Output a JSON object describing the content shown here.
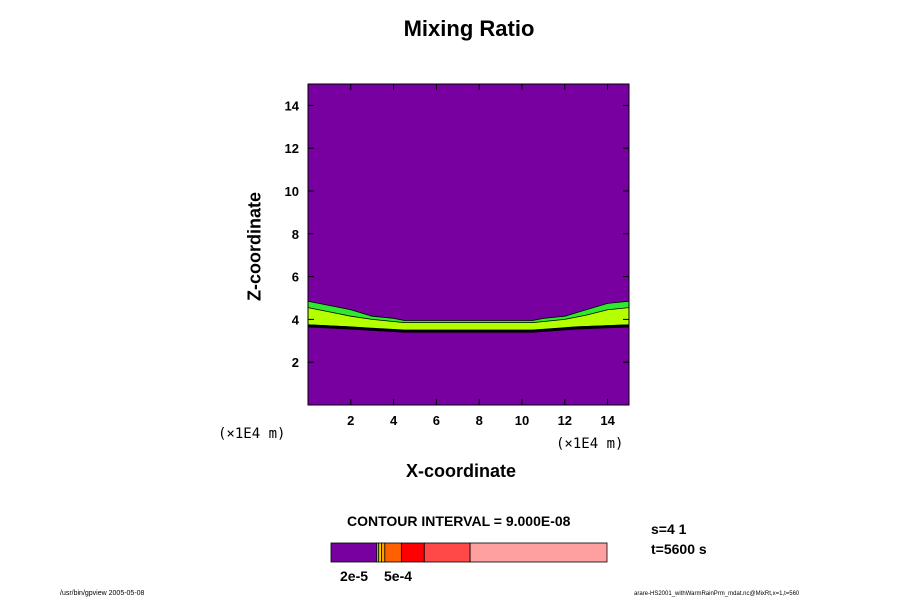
{
  "chart_data": {
    "type": "heatmap",
    "title": "Mixing Ratio",
    "xlabel": "X-coordinate",
    "ylabel": "Z-coordinate",
    "x_unit": "(×1E4 m)",
    "y_unit": "(×1E4 m)",
    "xlim": [
      0,
      15
    ],
    "ylim": [
      0,
      15
    ],
    "xticks": [
      2,
      4,
      6,
      8,
      10,
      12,
      14
    ],
    "yticks": [
      2,
      4,
      6,
      8,
      10,
      12,
      14
    ],
    "background_color": "#7800a0",
    "bands": [
      {
        "color": "#30e830",
        "top": [
          [
            0,
            4.85
          ],
          [
            1,
            4.65
          ],
          [
            2,
            4.45
          ],
          [
            3,
            4.15
          ],
          [
            4,
            4.05
          ],
          [
            4.5,
            3.95
          ],
          [
            10.5,
            3.95
          ],
          [
            11,
            4.05
          ],
          [
            12,
            4.15
          ],
          [
            13,
            4.45
          ],
          [
            14,
            4.75
          ],
          [
            15,
            4.85
          ]
        ],
        "bottom": [
          [
            0,
            3.7
          ],
          [
            15,
            3.7
          ]
        ]
      },
      {
        "color": "#b4ff00",
        "top": [
          [
            0,
            4.55
          ],
          [
            1,
            4.35
          ],
          [
            2,
            4.15
          ],
          [
            3,
            4.0
          ],
          [
            4.5,
            3.85
          ],
          [
            10.5,
            3.85
          ],
          [
            12,
            4.0
          ],
          [
            13,
            4.2
          ],
          [
            14,
            4.45
          ],
          [
            15,
            4.55
          ]
        ],
        "bottom": [
          [
            0,
            3.75
          ],
          [
            2,
            3.65
          ],
          [
            4.5,
            3.45
          ],
          [
            10.5,
            3.45
          ],
          [
            12.5,
            3.65
          ],
          [
            15,
            3.75
          ]
        ]
      }
    ],
    "contour_line_z": [
      [
        0,
        3.7
      ],
      [
        2,
        3.6
      ],
      [
        4.5,
        3.45
      ],
      [
        10.5,
        3.45
      ],
      [
        12.5,
        3.6
      ],
      [
        15,
        3.7
      ]
    ],
    "colorbar": {
      "colors": [
        "#7800a0",
        "#b4ff00",
        "#ffd000",
        "#ffa000",
        "#ff6000",
        "#ff0000",
        "#ff4848",
        "#ffa0a0"
      ],
      "fractions": [
        0.166,
        0.007,
        0.01,
        0.012,
        0.06,
        0.083,
        0.166,
        0.496
      ],
      "labels": [
        "2e-5",
        "5e-4"
      ]
    }
  },
  "contour_interval": "CONTOUR INTERVAL = 9.000E-08",
  "s_label": "s=4 1",
  "t_label": "t=5600 s",
  "footer_left": "/usr/bin/gpview 2005-05-08",
  "footer_right": "arare-HS2001_withWarmRainPrm_mdat.nc@MixRt,x=1,t=560"
}
